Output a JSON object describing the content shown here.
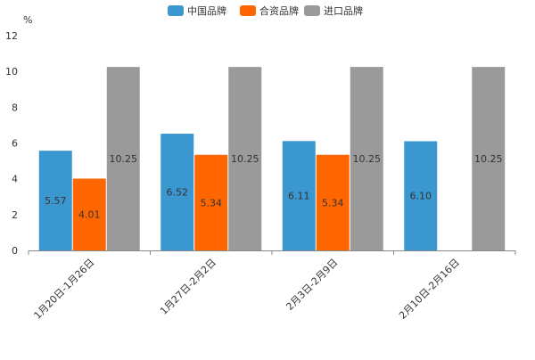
{
  "chart_data": {
    "type": "bar",
    "title": "",
    "xlabel": "",
    "ylabel": "%",
    "ylim": [
      0,
      12
    ],
    "yticks": [
      0,
      2,
      4,
      6,
      8,
      10,
      12
    ],
    "grid": false,
    "legend_position": "top-center",
    "categories": [
      "1月20日-1月26日",
      "1月27日-2月2日",
      "2月3日-2月9日",
      "2月10日-2月16日"
    ],
    "series": [
      {
        "name": "中国品牌",
        "color": "#3a97cf",
        "values": [
          5.57,
          6.52,
          6.11,
          6.1
        ],
        "labels": [
          "5.57",
          "6.52",
          "6.11",
          "6.10"
        ]
      },
      {
        "name": "合资品牌",
        "color": "#ff6600",
        "values": [
          4.01,
          5.34,
          5.34,
          null
        ],
        "labels": [
          "4.01",
          "5.34",
          "5.34",
          ""
        ]
      },
      {
        "name": "进口品牌",
        "color": "#9a9a9a",
        "values": [
          10.25,
          10.25,
          10.25,
          10.25
        ],
        "labels": [
          "10.25",
          "10.25",
          "10.25",
          "10.25"
        ]
      }
    ]
  }
}
